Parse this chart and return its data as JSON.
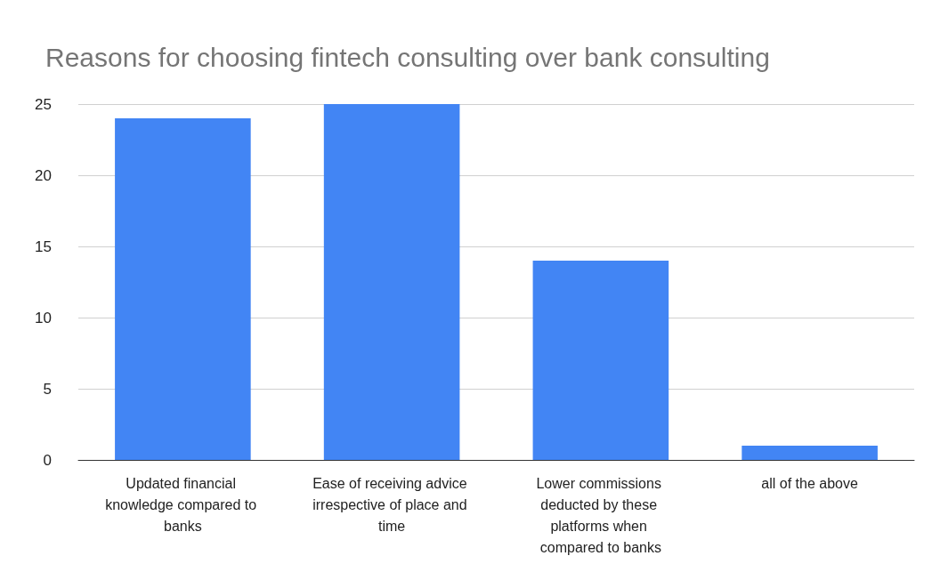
{
  "chart_data": {
    "type": "bar",
    "title": "Reasons for choosing fintech consulting over bank consulting",
    "categories": [
      "Updated financial knowledge compared to banks",
      "Ease of receiving advice irrespective of place and time",
      "Lower commissions deducted by these platforms when compared to banks",
      "all of the above"
    ],
    "values": [
      24,
      25,
      14,
      1
    ],
    "color": "#4285f4",
    "ylim": [
      0,
      25
    ],
    "yticks": [
      0,
      5,
      10,
      15,
      20,
      25
    ],
    "grid": "y"
  }
}
